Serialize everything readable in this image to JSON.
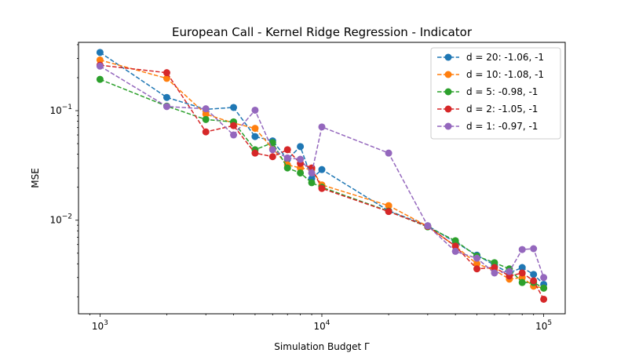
{
  "chart_data": {
    "type": "line",
    "title": "European Call - Kernel Ridge Regression - Indicator",
    "xlabel": "Simulation Budget Γ",
    "ylabel": "MSE",
    "xscale": "log",
    "yscale": "log",
    "xlim": [
      800,
      125000
    ],
    "ylim": [
      0.0014,
      0.42
    ],
    "xticks": [
      {
        "value": 1000,
        "base": "10",
        "exp": "3"
      },
      {
        "value": 10000,
        "base": "10",
        "exp": "4"
      },
      {
        "value": 100000,
        "base": "10",
        "exp": "5"
      }
    ],
    "yticks": [
      {
        "value": 0.01,
        "base": "10",
        "exp": "−2"
      },
      {
        "value": 0.1,
        "base": "10",
        "exp": "−1"
      }
    ],
    "grid": false,
    "legend_position": "top-right",
    "x": [
      1000,
      2000,
      3000,
      4000,
      5000,
      6000,
      7000,
      8000,
      9000,
      10000,
      20000,
      30000,
      40000,
      50000,
      60000,
      70000,
      80000,
      90000,
      100000
    ],
    "series": [
      {
        "name": "d = 20: -1.06, -1",
        "color": "#1f77b4",
        "values": [
          0.34,
          0.132,
          0.103,
          0.107,
          0.058,
          0.053,
          0.036,
          0.047,
          0.024,
          0.029,
          0.0122,
          0.0089,
          0.0063,
          0.0048,
          0.0039,
          0.0033,
          0.0037,
          0.0032,
          0.0026
        ]
      },
      {
        "name": "d = 10: -1.08, -1",
        "color": "#ff7f0e",
        "values": [
          0.29,
          0.197,
          0.093,
          0.077,
          0.069,
          0.045,
          0.032,
          0.03,
          0.029,
          0.021,
          0.0136,
          0.0088,
          0.0058,
          0.004,
          0.0035,
          0.0029,
          0.003,
          0.0025,
          0.0024
        ]
      },
      {
        "name": "d = 5: -0.98, -1",
        "color": "#2ca02c",
        "values": [
          0.193,
          0.11,
          0.083,
          0.079,
          0.044,
          0.051,
          0.03,
          0.027,
          0.022,
          0.02,
          0.0121,
          0.0087,
          0.0065,
          0.0047,
          0.0041,
          0.0036,
          0.0027,
          0.0027,
          0.0024
        ]
      },
      {
        "name": "d = 2: -1.05, -1",
        "color": "#d62728",
        "values": [
          0.26,
          0.222,
          0.064,
          0.073,
          0.041,
          0.038,
          0.044,
          0.033,
          0.03,
          0.0195,
          0.012,
          0.0088,
          0.0058,
          0.0036,
          0.0037,
          0.0031,
          0.0033,
          0.0028,
          0.0019
        ]
      },
      {
        "name": "d = 1: -0.97, -1",
        "color": "#9467bd",
        "values": [
          0.255,
          0.109,
          0.104,
          0.06,
          0.101,
          0.044,
          0.037,
          0.036,
          0.027,
          0.071,
          0.041,
          0.0089,
          0.0052,
          0.0045,
          0.0033,
          0.0034,
          0.0054,
          0.0055,
          0.003
        ]
      }
    ]
  }
}
